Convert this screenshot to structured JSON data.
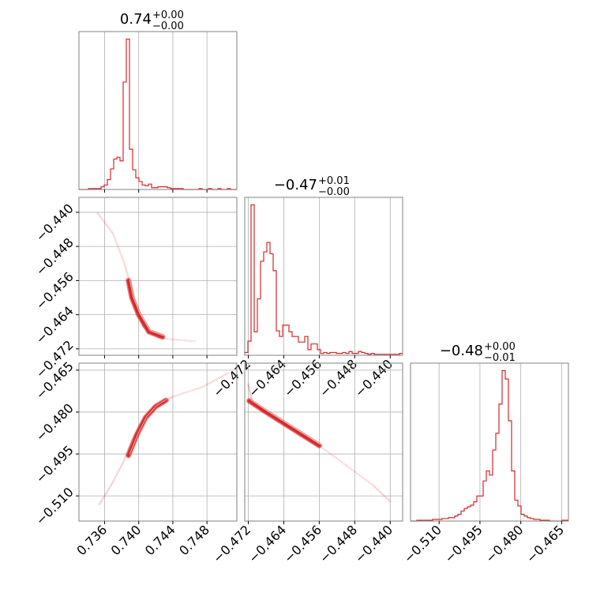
{
  "chart_data": [
    {
      "type": "histogram",
      "panel": "hist-1",
      "title": {
        "main": "0.74",
        "sup": "+0.00",
        "sub": "−0.00"
      },
      "xlim": [
        0.733,
        0.7515
      ],
      "y_ticks_hidden": true,
      "x_ticks": [
        0.736,
        0.74,
        0.744,
        0.748
      ],
      "x_tick_labels": [],
      "bins": {
        "edges_start": 0.733,
        "bin_width": 0.00037,
        "counts": [
          0,
          0,
          0,
          1,
          1,
          1,
          1,
          3,
          5,
          11,
          23,
          34,
          36,
          32,
          120,
          168,
          45,
          22,
          13,
          9,
          5,
          4,
          6,
          2,
          2,
          3,
          3,
          3,
          2,
          1,
          1,
          1,
          1,
          0,
          0,
          0,
          0,
          0,
          1,
          0,
          0,
          1,
          0,
          0,
          1,
          0,
          0,
          1,
          0,
          0
        ]
      },
      "color": "#d62728"
    },
    {
      "type": "histogram",
      "panel": "hist-2",
      "title": {
        "main": "−0.47",
        "sup": "+0.01",
        "sub": "−0.00"
      },
      "xlim": [
        -0.4728,
        -0.4372
      ],
      "y_ticks_hidden": true,
      "x_ticks": [
        -0.472,
        -0.464,
        -0.456,
        -0.448,
        -0.44
      ],
      "x_tick_labels": [
        "−0.472",
        "−0.464",
        "−0.456",
        "−0.448",
        "−0.440"
      ],
      "bins": {
        "edges_start": -0.4728,
        "bin_width": 0.000712,
        "counts": [
          3,
          15,
          160,
          25,
          60,
          100,
          110,
          120,
          108,
          90,
          26,
          20,
          32,
          32,
          25,
          20,
          20,
          14,
          14,
          20,
          6,
          12,
          12,
          6,
          2,
          3,
          2,
          3,
          3,
          2,
          2,
          3,
          2,
          4,
          2,
          2,
          4,
          3,
          2,
          1,
          2,
          1,
          1,
          1,
          1,
          1,
          1,
          1,
          1,
          2
        ]
      },
      "color": "#d62728"
    },
    {
      "type": "histogram",
      "panel": "hist-3",
      "title": {
        "main": "−0.48",
        "sup": "+0.00",
        "sub": "−0.01"
      },
      "xlim": [
        -0.5205,
        -0.4625
      ],
      "y_ticks_hidden": true,
      "x_ticks": [
        -0.51,
        -0.495,
        -0.48,
        -0.465
      ],
      "x_tick_labels": [
        "−0.510",
        "−0.495",
        "−0.480",
        "−0.465"
      ],
      "bins": {
        "edges_start": -0.5205,
        "bin_width": 0.00116,
        "counts": [
          0,
          0,
          1,
          1,
          1,
          1,
          1,
          2,
          2,
          2,
          3,
          3,
          4,
          4,
          6,
          8,
          12,
          15,
          17,
          19,
          23,
          30,
          30,
          48,
          60,
          55,
          85,
          105,
          140,
          180,
          170,
          120,
          60,
          25,
          18,
          8,
          6,
          4,
          3,
          2,
          2,
          1,
          1,
          1,
          0,
          0,
          0,
          0,
          1,
          1
        ]
      },
      "color": "#d62728"
    },
    {
      "type": "contour",
      "panel": "corner-2-1",
      "xlim": [
        0.733,
        0.7515
      ],
      "ylim": [
        -0.4735,
        -0.4365
      ],
      "y_ticks": [
        -0.44,
        -0.448,
        -0.456,
        -0.464,
        -0.472
      ],
      "y_tick_labels": [
        "−0.440",
        "−0.448",
        "−0.456",
        "−0.464",
        "−0.472"
      ],
      "x_tick_labels": [],
      "ridge": [
        [
          0.7352,
          -0.4402
        ],
        [
          0.737,
          -0.445
        ],
        [
          0.7383,
          -0.4518
        ],
        [
          0.7391,
          -0.4575
        ],
        [
          0.7397,
          -0.4622
        ],
        [
          0.7405,
          -0.4668
        ],
        [
          0.7425,
          -0.4695
        ],
        [
          0.7465,
          -0.4702
        ]
      ],
      "core": [
        [
          0.7388,
          -0.456
        ],
        [
          0.7392,
          -0.46
        ],
        [
          0.74,
          -0.464
        ],
        [
          0.7412,
          -0.468
        ],
        [
          0.7428,
          -0.4692
        ]
      ],
      "color": "#d62728"
    },
    {
      "type": "contour",
      "panel": "corner-3-1",
      "xlim": [
        0.733,
        0.7515
      ],
      "ylim": [
        -0.519,
        -0.4625
      ],
      "y_ticks": [
        -0.465,
        -0.48,
        -0.495,
        -0.51
      ],
      "y_tick_labels": [
        "−0.465",
        "−0.480",
        "−0.495",
        "−0.510"
      ],
      "x_ticks": [
        0.736,
        0.74,
        0.744,
        0.748
      ],
      "x_tick_labels": [
        "0.736",
        "0.740",
        "0.744",
        "0.748"
      ],
      "ridge": [
        [
          0.7354,
          -0.513
        ],
        [
          0.7368,
          -0.506
        ],
        [
          0.7382,
          -0.498
        ],
        [
          0.7392,
          -0.49
        ],
        [
          0.7405,
          -0.483
        ],
        [
          0.7418,
          -0.478
        ],
        [
          0.744,
          -0.4745
        ],
        [
          0.7475,
          -0.471
        ],
        [
          0.7505,
          -0.466
        ]
      ],
      "core": [
        [
          0.7388,
          -0.4955
        ],
        [
          0.7398,
          -0.488
        ],
        [
          0.7408,
          -0.482
        ],
        [
          0.742,
          -0.478
        ],
        [
          0.7432,
          -0.4758
        ]
      ],
      "color": "#d62728"
    },
    {
      "type": "contour",
      "panel": "corner-3-2",
      "xlim": [
        -0.4728,
        -0.4372
      ],
      "ylim": [
        -0.519,
        -0.4625
      ],
      "x_ticks": [
        -0.472,
        -0.464,
        -0.456,
        -0.448,
        -0.44
      ],
      "x_tick_labels": [
        "−0.472",
        "−0.464",
        "−0.456",
        "−0.448",
        "−0.440"
      ],
      "ridge": [
        [
          -0.472,
          -0.47
        ],
        [
          -0.4712,
          -0.476
        ],
        [
          -0.469,
          -0.479
        ],
        [
          -0.465,
          -0.483
        ],
        [
          -0.46,
          -0.488
        ],
        [
          -0.456,
          -0.492
        ],
        [
          -0.45,
          -0.499
        ],
        [
          -0.444,
          -0.506
        ],
        [
          -0.44,
          -0.512
        ]
      ],
      "core": [
        [
          -0.4718,
          -0.476
        ],
        [
          -0.468,
          -0.48
        ],
        [
          -0.463,
          -0.485
        ],
        [
          -0.459,
          -0.489
        ],
        [
          -0.456,
          -0.492
        ]
      ],
      "color": "#d62728"
    }
  ]
}
